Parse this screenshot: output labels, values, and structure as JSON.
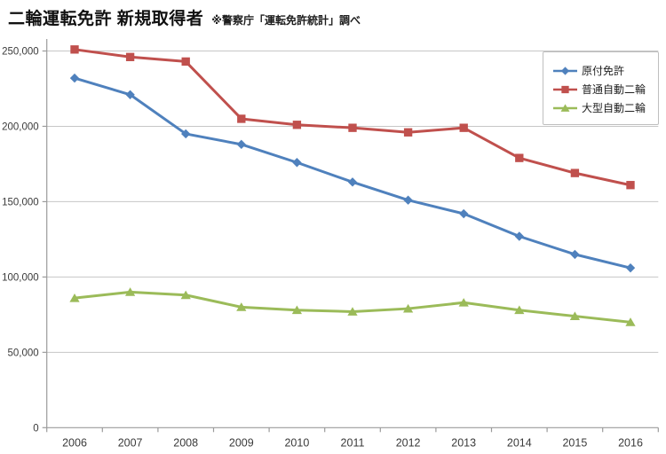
{
  "header": {
    "title": "二輪運転免許 新規取得者",
    "subtitle": "※警察庁「運転免許統計」調べ"
  },
  "chart_data": {
    "type": "line",
    "title": "二輪運転免許 新規取得者",
    "subtitle": "※警察庁「運転免許統計」調べ",
    "x": [
      "2006",
      "2007",
      "2008",
      "2009",
      "2010",
      "2011",
      "2012",
      "2013",
      "2014",
      "2015",
      "2016"
    ],
    "series": [
      {
        "name": "原付免許",
        "color": "#4F81BD",
        "marker": "diamond",
        "values": [
          232000,
          221000,
          195000,
          188000,
          176000,
          163000,
          151000,
          142000,
          127000,
          115000,
          106000
        ]
      },
      {
        "name": "普通自動二輪",
        "color": "#C0504D",
        "marker": "square",
        "values": [
          251000,
          246000,
          243000,
          205000,
          201000,
          199000,
          196000,
          199000,
          179000,
          169000,
          161000
        ]
      },
      {
        "name": "大型自動二輪",
        "color": "#9BBB59",
        "marker": "triangle",
        "values": [
          86000,
          90000,
          88000,
          80000,
          78000,
          77000,
          79000,
          83000,
          78000,
          74000,
          70000
        ]
      }
    ],
    "ylim": [
      0,
      250000
    ],
    "ytick_step": 50000,
    "ytick_labels": [
      "0",
      "50,000",
      "100,000",
      "150,000",
      "200,000",
      "250,000"
    ],
    "grid": "horizontal",
    "legend_position": "top-right",
    "colors": {
      "grid": "#c6c6c6",
      "axis": "#9b9b9b",
      "tick_text": "#3b3b3b",
      "legend_border": "#bfbfbf",
      "title_text": "#111111"
    }
  }
}
